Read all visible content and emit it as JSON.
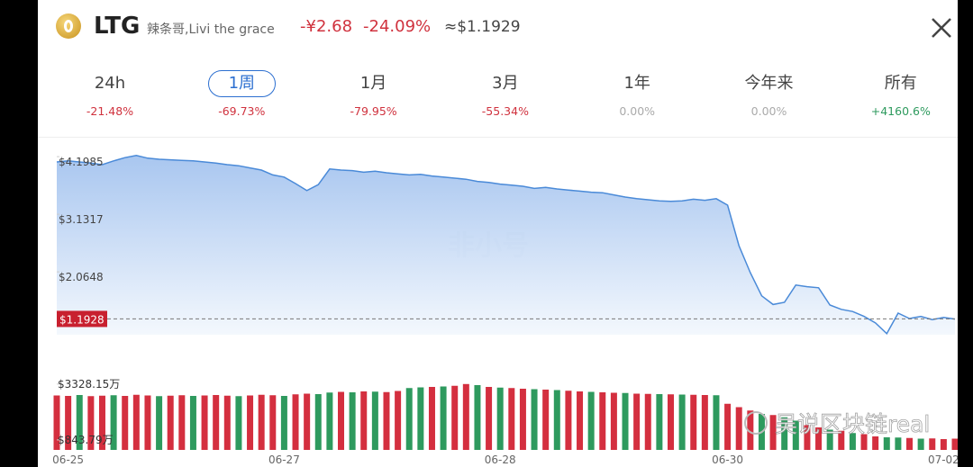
{
  "header": {
    "ticker": "LTG",
    "name": "辣条哥,Livi the grace",
    "change": "-¥2.68",
    "change_pct": "-24.09%",
    "price": "≈$1.1929"
  },
  "tabs": [
    {
      "label": "24h",
      "change": "-21.48%",
      "color": "#d0323e"
    },
    {
      "label": "1周",
      "change": "-69.73%",
      "color": "#d0323e",
      "selected": true
    },
    {
      "label": "1月",
      "change": "-79.95%",
      "color": "#d0323e"
    },
    {
      "label": "3月",
      "change": "-55.34%",
      "color": "#d0323e"
    },
    {
      "label": "1年",
      "change": "0.00%",
      "color": "#aaaaaa"
    },
    {
      "label": "今年来",
      "change": "0.00%",
      "color": "#aaaaaa"
    },
    {
      "label": "所有",
      "change": "+4160.6%",
      "color": "#2e9a5e"
    }
  ],
  "watermarks": [
    "非小号",
    "吴说区块链real"
  ],
  "chart_data": {
    "type": "line",
    "color": "#4a8ad8",
    "categories": [
      null,
      "06-25",
      null,
      null,
      null,
      null,
      null,
      null,
      null,
      null,
      null,
      null,
      null,
      null,
      null,
      null,
      null,
      null,
      null,
      null,
      "06-27",
      null,
      null,
      null,
      null,
      null,
      null,
      null,
      null,
      null,
      null,
      null,
      null,
      null,
      null,
      null,
      null,
      null,
      null,
      "06-28",
      null,
      null,
      null,
      null,
      null,
      null,
      null,
      null,
      null,
      null,
      null,
      null,
      null,
      null,
      null,
      null,
      null,
      null,
      null,
      "06-30",
      null,
      null,
      null,
      null,
      null,
      null,
      null,
      null,
      null,
      null,
      null,
      null,
      null,
      null,
      null,
      null,
      null,
      null,
      "07-02",
      null
    ],
    "values": [
      4.1,
      4.12,
      4.1,
      4.08,
      4.05,
      4.12,
      4.18,
      4.22,
      4.17,
      4.15,
      4.14,
      4.13,
      4.12,
      4.1,
      4.08,
      4.05,
      4.03,
      3.99,
      3.95,
      3.86,
      3.82,
      3.7,
      3.57,
      3.68,
      3.97,
      3.95,
      3.94,
      3.91,
      3.93,
      3.9,
      3.88,
      3.86,
      3.87,
      3.84,
      3.82,
      3.8,
      3.78,
      3.74,
      3.72,
      3.69,
      3.67,
      3.65,
      3.61,
      3.63,
      3.6,
      3.58,
      3.56,
      3.54,
      3.53,
      3.49,
      3.45,
      3.42,
      3.4,
      3.38,
      3.37,
      3.38,
      3.41,
      3.39,
      3.42,
      3.3,
      2.55,
      2.05,
      1.62,
      1.46,
      1.5,
      1.82,
      1.79,
      1.77,
      1.45,
      1.37,
      1.33,
      1.24,
      1.12,
      0.92,
      1.3,
      1.2,
      1.24,
      1.18,
      1.22,
      1.19
    ],
    "ylim": [
      0.9,
      4.3
    ],
    "yticks": [
      {
        "value": 4.1985,
        "label": "$4.1985"
      },
      {
        "value": 3.1317,
        "label": "$3.1317"
      },
      {
        "value": 2.0648,
        "label": "$2.0648"
      }
    ],
    "current": {
      "value": 1.1928,
      "label": "$1.1928"
    },
    "volume": {
      "ylim": [
        400,
        3400
      ],
      "yticks": [
        {
          "value": 3328.15,
          "label": "$3328.15万"
        },
        {
          "value": 843.79,
          "label": "$843.79万"
        }
      ],
      "values": [
        2820,
        2800,
        2840,
        2790,
        2810,
        2830,
        2800,
        2850,
        2820,
        2790,
        2810,
        2830,
        2800,
        2820,
        2840,
        2810,
        2790,
        2820,
        2850,
        2830,
        2800,
        2870,
        2900,
        2880,
        2950,
        2980,
        2960,
        3000,
        2990,
        2970,
        3020,
        3150,
        3180,
        3200,
        3220,
        3250,
        3328.15,
        3280,
        3200,
        3170,
        3150,
        3120,
        3100,
        3080,
        3060,
        3030,
        3000,
        2980,
        2960,
        2940,
        2930,
        2900,
        2890,
        2880,
        2870,
        2860,
        2850,
        2840,
        2830,
        2450,
        2300,
        2150,
        2000,
        1950,
        1850,
        1700,
        1500,
        1400,
        1300,
        1250,
        1150,
        1100,
        1000,
        960,
        950,
        930,
        900,
        910,
        880,
        900
      ],
      "colors": [
        "#d42f3f",
        "#d42f3f",
        "#2e9a5e",
        "#d42f3f",
        "#d42f3f",
        "#2e9a5e",
        "#d42f3f",
        "#d42f3f",
        "#d42f3f",
        "#2e9a5e",
        "#d42f3f",
        "#d42f3f",
        "#2e9a5e",
        "#d42f3f",
        "#d42f3f",
        "#d42f3f",
        "#2e9a5e",
        "#d42f3f",
        "#d42f3f",
        "#d42f3f",
        "#2e9a5e",
        "#d42f3f",
        "#d42f3f",
        "#2e9a5e",
        "#2e9a5e",
        "#d42f3f",
        "#2e9a5e",
        "#d42f3f",
        "#2e9a5e",
        "#d42f3f",
        "#d42f3f",
        "#2e9a5e",
        "#2e9a5e",
        "#d42f3f",
        "#2e9a5e",
        "#d42f3f",
        "#d42f3f",
        "#2e9a5e",
        "#d42f3f",
        "#2e9a5e",
        "#d42f3f",
        "#d42f3f",
        "#2e9a5e",
        "#d42f3f",
        "#2e9a5e",
        "#d42f3f",
        "#d42f3f",
        "#2e9a5e",
        "#d42f3f",
        "#d42f3f",
        "#2e9a5e",
        "#d42f3f",
        "#d42f3f",
        "#2e9a5e",
        "#d42f3f",
        "#2e9a5e",
        "#d42f3f",
        "#d42f3f",
        "#2e9a5e",
        "#d42f3f",
        "#d42f3f",
        "#d42f3f",
        "#2e9a5e",
        "#d42f3f",
        "#2e9a5e",
        "#2e9a5e",
        "#d42f3f",
        "#d42f3f",
        "#2e9a5e",
        "#d42f3f",
        "#2e9a5e",
        "#d42f3f",
        "#d42f3f",
        "#2e9a5e",
        "#2e9a5e",
        "#d42f3f",
        "#2e9a5e",
        "#d42f3f",
        "#d42f3f",
        "#d42f3f"
      ]
    }
  }
}
